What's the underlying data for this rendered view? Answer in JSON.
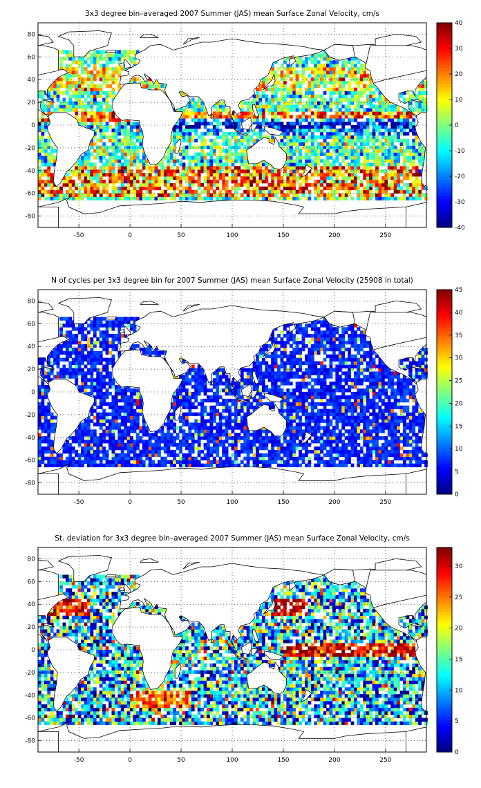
{
  "figure_background": "#ffffff",
  "chart_data": [
    {
      "type": "heatmap",
      "title": "3x3 degree bin–averaged 2007 Summer (JAS) mean Surface Zonal Velocity, cm/s",
      "xlabel": "",
      "ylabel": "",
      "xlim": [
        -90,
        290
      ],
      "ylim": [
        -90,
        90
      ],
      "x_ticks": [
        -50,
        0,
        50,
        100,
        150,
        200,
        250
      ],
      "y_ticks": [
        -80,
        -60,
        -40,
        -20,
        0,
        20,
        40,
        60,
        80
      ],
      "grid": true,
      "grid_style": "dotted",
      "colormap": "jet",
      "color_range": [
        -40,
        40
      ],
      "colorbar_ticks": [
        -40,
        -30,
        -20,
        -10,
        0,
        10,
        20,
        30,
        40
      ],
      "bin_size_deg": 3,
      "field": "zonal_velocity"
    },
    {
      "type": "heatmap",
      "title": "N of cycles per 3x3 degree bin for 2007 Summer (JAS) mean Surface Zonal Velocity (25908 in total)",
      "xlabel": "",
      "ylabel": "",
      "xlim": [
        -90,
        290
      ],
      "ylim": [
        -90,
        90
      ],
      "x_ticks": [
        -50,
        0,
        50,
        100,
        150,
        200,
        250
      ],
      "y_ticks": [
        -80,
        -60,
        -40,
        -20,
        0,
        20,
        40,
        60,
        80
      ],
      "grid": true,
      "grid_style": "dotted",
      "colormap": "jet",
      "color_range": [
        0,
        45
      ],
      "colorbar_ticks": [
        0,
        5,
        10,
        15,
        20,
        25,
        30,
        35,
        40,
        45
      ],
      "bin_size_deg": 3,
      "field": "cycle_count"
    },
    {
      "type": "heatmap",
      "title": "St. deviation for 3x3 degree bin–averaged 2007 Summer (JAS) mean Surface Zonal Velocity, cm/s",
      "xlabel": "",
      "ylabel": "",
      "xlim": [
        -90,
        290
      ],
      "ylim": [
        -90,
        90
      ],
      "x_ticks": [
        -50,
        0,
        50,
        100,
        150,
        200,
        250
      ],
      "y_ticks": [
        -80,
        -60,
        -40,
        -20,
        0,
        20,
        40,
        60,
        80
      ],
      "grid": true,
      "grid_style": "dotted",
      "colormap": "jet",
      "color_range": [
        0,
        33
      ],
      "colorbar_ticks": [
        0,
        5,
        10,
        15,
        20,
        25,
        30
      ],
      "bin_size_deg": 3,
      "field": "std_deviation"
    }
  ]
}
